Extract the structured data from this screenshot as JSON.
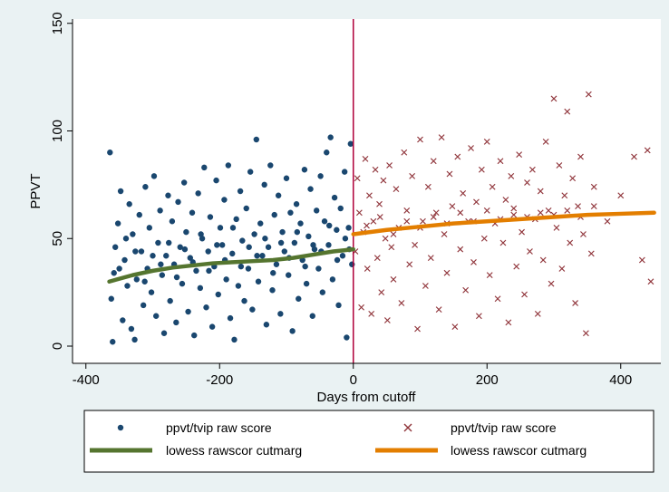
{
  "chart_data": {
    "type": "scatter",
    "xlabel": "Days from cutoff",
    "ylabel": "PPVT",
    "xlim": [
      -420,
      460
    ],
    "ylim": [
      -8,
      152
    ],
    "x_ticks": [
      -400,
      -200,
      0,
      200,
      400
    ],
    "y_ticks": [
      0,
      50,
      100,
      150
    ],
    "grid": false,
    "legend_position": "bottom",
    "cutoff_line_x": 0,
    "colors": {
      "background": "#eaf2f3",
      "plot_background": "#ffffff",
      "left_points": "#1a476f",
      "right_points": "#90353b",
      "left_lowess": "#55752f",
      "right_lowess": "#e37e00",
      "cutoff_line": "#b0003a"
    },
    "series": [
      {
        "name": "ppvt/tvip raw score",
        "kind": "scatter",
        "marker": "circle",
        "color": "#1a476f",
        "note": "point cloud, x in [-365, 0], y roughly 2-97; representative sample",
        "points": [
          [
            -364,
            90
          ],
          [
            -362,
            22
          ],
          [
            -360,
            2
          ],
          [
            -358,
            34
          ],
          [
            -356,
            46
          ],
          [
            -352,
            57
          ],
          [
            -348,
            72
          ],
          [
            -345,
            12
          ],
          [
            -342,
            40
          ],
          [
            -338,
            28
          ],
          [
            -335,
            66
          ],
          [
            -332,
            8
          ],
          [
            -330,
            52
          ],
          [
            -327,
            3
          ],
          [
            -324,
            31
          ],
          [
            -320,
            61
          ],
          [
            -317,
            44
          ],
          [
            -314,
            19
          ],
          [
            -311,
            74
          ],
          [
            -308,
            36
          ],
          [
            -305,
            55
          ],
          [
            -302,
            25
          ],
          [
            -298,
            79
          ],
          [
            -295,
            14
          ],
          [
            -292,
            48
          ],
          [
            -289,
            63
          ],
          [
            -286,
            33
          ],
          [
            -283,
            6
          ],
          [
            -280,
            42
          ],
          [
            -277,
            70
          ],
          [
            -274,
            21
          ],
          [
            -271,
            58
          ],
          [
            -268,
            38
          ],
          [
            -265,
            11
          ],
          [
            -262,
            67
          ],
          [
            -259,
            46
          ],
          [
            -256,
            29
          ],
          [
            -253,
            76
          ],
          [
            -250,
            53
          ],
          [
            -247,
            16
          ],
          [
            -244,
            41
          ],
          [
            -241,
            62
          ],
          [
            -238,
            5
          ],
          [
            -235,
            35
          ],
          [
            -232,
            71
          ],
          [
            -229,
            27
          ],
          [
            -226,
            50
          ],
          [
            -223,
            83
          ],
          [
            -220,
            18
          ],
          [
            -217,
            44
          ],
          [
            -214,
            60
          ],
          [
            -211,
            9
          ],
          [
            -208,
            37
          ],
          [
            -205,
            77
          ],
          [
            -202,
            24
          ],
          [
            -199,
            55
          ],
          [
            -196,
            47
          ],
          [
            -193,
            68
          ],
          [
            -190,
            31
          ],
          [
            -187,
            84
          ],
          [
            -184,
            13
          ],
          [
            -181,
            43
          ],
          [
            -178,
            3
          ],
          [
            -175,
            59
          ],
          [
            -172,
            28
          ],
          [
            -169,
            72
          ],
          [
            -166,
            49
          ],
          [
            -163,
            21
          ],
          [
            -160,
            64
          ],
          [
            -157,
            36
          ],
          [
            -154,
            81
          ],
          [
            -151,
            17
          ],
          [
            -148,
            52
          ],
          [
            -145,
            96
          ],
          [
            -142,
            30
          ],
          [
            -139,
            57
          ],
          [
            -136,
            42
          ],
          [
            -133,
            75
          ],
          [
            -130,
            10
          ],
          [
            -127,
            46
          ],
          [
            -124,
            84
          ],
          [
            -121,
            26
          ],
          [
            -118,
            61
          ],
          [
            -115,
            38
          ],
          [
            -112,
            70
          ],
          [
            -109,
            15
          ],
          [
            -106,
            53
          ],
          [
            -103,
            44
          ],
          [
            -100,
            78
          ],
          [
            -97,
            33
          ],
          [
            -94,
            62
          ],
          [
            -91,
            7
          ],
          [
            -88,
            48
          ],
          [
            -85,
            66
          ],
          [
            -82,
            22
          ],
          [
            -79,
            57
          ],
          [
            -76,
            40
          ],
          [
            -73,
            82
          ],
          [
            -70,
            29
          ],
          [
            -67,
            51
          ],
          [
            -64,
            73
          ],
          [
            -61,
            14
          ],
          [
            -58,
            45
          ],
          [
            -55,
            63
          ],
          [
            -52,
            36
          ],
          [
            -49,
            79
          ],
          [
            -46,
            25
          ],
          [
            -43,
            58
          ],
          [
            -40,
            90
          ],
          [
            -37,
            47
          ],
          [
            -34,
            97
          ],
          [
            -31,
            31
          ],
          [
            -28,
            69
          ],
          [
            -25,
            54
          ],
          [
            -22,
            19
          ],
          [
            -19,
            64
          ],
          [
            -16,
            42
          ],
          [
            -13,
            81
          ],
          [
            -10,
            4
          ],
          [
            -7,
            55
          ],
          [
            -4,
            94
          ],
          [
            -2,
            38
          ],
          [
            -350,
            36
          ],
          [
            -340,
            50
          ],
          [
            -326,
            44
          ],
          [
            -312,
            30
          ],
          [
            -300,
            42
          ],
          [
            -288,
            38
          ],
          [
            -276,
            48
          ],
          [
            -264,
            32
          ],
          [
            -252,
            45
          ],
          [
            -240,
            39
          ],
          [
            -228,
            52
          ],
          [
            -216,
            35
          ],
          [
            -204,
            47
          ],
          [
            -192,
            40
          ],
          [
            -180,
            55
          ],
          [
            -168,
            37
          ],
          [
            -156,
            46
          ],
          [
            -144,
            42
          ],
          [
            -132,
            50
          ],
          [
            -120,
            34
          ],
          [
            -108,
            48
          ],
          [
            -96,
            41
          ],
          [
            -84,
            53
          ],
          [
            -72,
            37
          ],
          [
            -60,
            47
          ],
          [
            -48,
            44
          ],
          [
            -36,
            56
          ],
          [
            -24,
            40
          ],
          [
            -12,
            50
          ],
          [
            -6,
            45
          ]
        ]
      },
      {
        "name": "ppvt/tvip raw score",
        "kind": "scatter",
        "marker": "x",
        "color": "#90353b",
        "note": "point cloud, x in [0, 445], y roughly 6-117; representative sample",
        "points": [
          [
            3,
            44
          ],
          [
            6,
            78
          ],
          [
            9,
            62
          ],
          [
            12,
            18
          ],
          [
            15,
            53
          ],
          [
            18,
            87
          ],
          [
            21,
            36
          ],
          [
            24,
            70
          ],
          [
            27,
            15
          ],
          [
            30,
            58
          ],
          [
            33,
            82
          ],
          [
            36,
            41
          ],
          [
            39,
            66
          ],
          [
            42,
            25
          ],
          [
            45,
            77
          ],
          [
            48,
            50
          ],
          [
            51,
            12
          ],
          [
            54,
            84
          ],
          [
            57,
            46
          ],
          [
            60,
            31
          ],
          [
            64,
            73
          ],
          [
            68,
            55
          ],
          [
            72,
            20
          ],
          [
            76,
            90
          ],
          [
            80,
            63
          ],
          [
            84,
            38
          ],
          [
            88,
            79
          ],
          [
            92,
            47
          ],
          [
            96,
            8
          ],
          [
            100,
            96
          ],
          [
            104,
            58
          ],
          [
            108,
            28
          ],
          [
            112,
            74
          ],
          [
            116,
            41
          ],
          [
            120,
            86
          ],
          [
            124,
            62
          ],
          [
            128,
            17
          ],
          [
            132,
            97
          ],
          [
            136,
            52
          ],
          [
            140,
            34
          ],
          [
            144,
            80
          ],
          [
            148,
            65
          ],
          [
            152,
            9
          ],
          [
            156,
            88
          ],
          [
            160,
            45
          ],
          [
            164,
            71
          ],
          [
            168,
            26
          ],
          [
            172,
            58
          ],
          [
            176,
            92
          ],
          [
            180,
            39
          ],
          [
            184,
            67
          ],
          [
            188,
            14
          ],
          [
            192,
            82
          ],
          [
            196,
            50
          ],
          [
            200,
            95
          ],
          [
            204,
            33
          ],
          [
            208,
            74
          ],
          [
            212,
            57
          ],
          [
            216,
            22
          ],
          [
            220,
            86
          ],
          [
            224,
            48
          ],
          [
            228,
            68
          ],
          [
            232,
            11
          ],
          [
            236,
            79
          ],
          [
            240,
            61
          ],
          [
            244,
            37
          ],
          [
            248,
            89
          ],
          [
            252,
            53
          ],
          [
            256,
            24
          ],
          [
            260,
            76
          ],
          [
            264,
            44
          ],
          [
            268,
            82
          ],
          [
            272,
            59
          ],
          [
            276,
            15
          ],
          [
            280,
            72
          ],
          [
            284,
            40
          ],
          [
            288,
            95
          ],
          [
            292,
            63
          ],
          [
            296,
            29
          ],
          [
            300,
            115
          ],
          [
            304,
            55
          ],
          [
            308,
            84
          ],
          [
            312,
            36
          ],
          [
            316,
            70
          ],
          [
            320,
            109
          ],
          [
            324,
            48
          ],
          [
            328,
            78
          ],
          [
            332,
            20
          ],
          [
            336,
            65
          ],
          [
            340,
            88
          ],
          [
            344,
            52
          ],
          [
            348,
            6
          ],
          [
            352,
            117
          ],
          [
            356,
            43
          ],
          [
            360,
            74
          ],
          [
            380,
            58
          ],
          [
            400,
            70
          ],
          [
            420,
            88
          ],
          [
            432,
            40
          ],
          [
            440,
            91
          ],
          [
            445,
            30
          ],
          [
            20,
            56
          ],
          [
            40,
            60
          ],
          [
            60,
            52
          ],
          [
            80,
            58
          ],
          [
            100,
            55
          ],
          [
            120,
            60
          ],
          [
            140,
            57
          ],
          [
            160,
            62
          ],
          [
            180,
            58
          ],
          [
            200,
            63
          ],
          [
            220,
            59
          ],
          [
            240,
            64
          ],
          [
            260,
            60
          ],
          [
            280,
            62
          ],
          [
            300,
            61
          ],
          [
            320,
            63
          ],
          [
            340,
            60
          ],
          [
            360,
            65
          ]
        ]
      },
      {
        "name": "lowess rawscor  cutmarg",
        "kind": "line",
        "color": "#55752f",
        "x": [
          -365,
          -330,
          -300,
          -270,
          -240,
          -210,
          -180,
          -150,
          -120,
          -90,
          -60,
          -30,
          0
        ],
        "y": [
          30,
          33,
          35,
          36.5,
          37.5,
          38.5,
          39,
          39.5,
          40,
          41,
          42.5,
          44,
          45
        ]
      },
      {
        "name": "lowess rawscor  cutmarg",
        "kind": "line",
        "color": "#e37e00",
        "x": [
          0,
          50,
          100,
          150,
          200,
          250,
          300,
          350,
          400,
          450
        ],
        "y": [
          52,
          54,
          55.5,
          57,
          58,
          59,
          60,
          61,
          61.5,
          62
        ]
      }
    ],
    "legend": {
      "entries": [
        {
          "label": "ppvt/tvip raw score",
          "symbol": "circle",
          "color": "#1a476f"
        },
        {
          "label": "ppvt/tvip raw score",
          "symbol": "x",
          "color": "#90353b"
        },
        {
          "label": "lowess rawscor  cutmarg",
          "symbol": "line",
          "color": "#55752f"
        },
        {
          "label": "lowess rawscor  cutmarg",
          "symbol": "line",
          "color": "#e37e00"
        }
      ]
    }
  }
}
